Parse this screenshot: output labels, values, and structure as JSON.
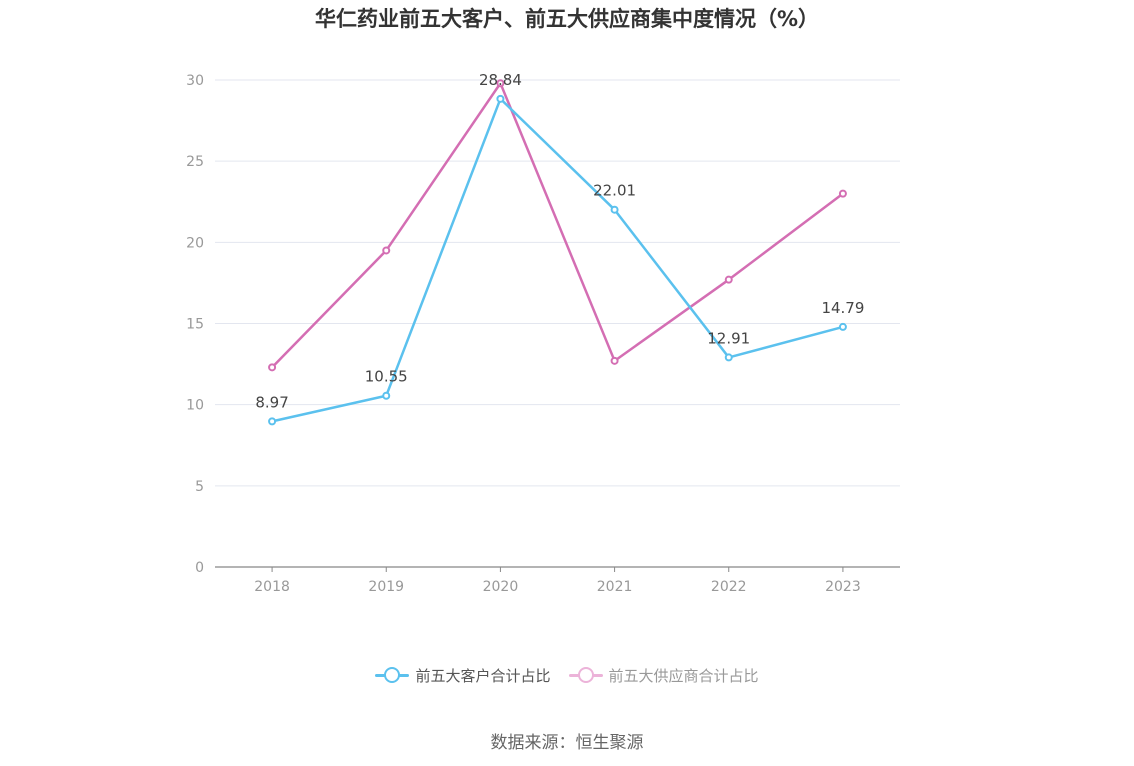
{
  "chart_data": {
    "type": "line",
    "title": "华仁药业前五大客户、前五大供应商集中度情况（%）",
    "categories": [
      "2018",
      "2019",
      "2020",
      "2021",
      "2022",
      "2023"
    ],
    "ylim": [
      0,
      30
    ],
    "yticks": [
      "0",
      "5",
      "10",
      "15",
      "20",
      "25",
      "30"
    ],
    "grid": true,
    "legend_position": "bottom",
    "series": [
      {
        "name": "前五大客户合计占比",
        "color": "#5bc1ee",
        "values": [
          8.97,
          10.55,
          28.84,
          22.01,
          12.91,
          14.79
        ],
        "labels": [
          "8.97",
          "10.55",
          "28.84",
          "22.01",
          "12.91",
          "14.79"
        ]
      },
      {
        "name": "前五大供应商合计占比",
        "color": "#d46eb3",
        "values": [
          12.3,
          19.5,
          29.8,
          12.7,
          17.7,
          23.0
        ],
        "labels": []
      }
    ]
  },
  "source": "数据来源：恒生聚源"
}
